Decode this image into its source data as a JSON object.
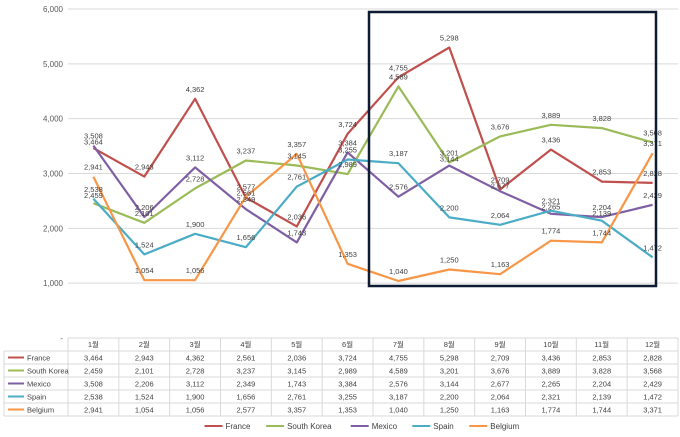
{
  "chart_data": {
    "type": "line",
    "categories": [
      "1월",
      "2월",
      "3월",
      "4월",
      "5월",
      "6월",
      "7월",
      "8월",
      "9월",
      "10월",
      "11월",
      "12월"
    ],
    "ylim": [
      0,
      6000
    ],
    "yticks": [
      "6,000",
      "5,000",
      "4,000",
      "3,000",
      "2,000",
      "1,000",
      "-"
    ],
    "grid": true,
    "legend_position": "bottom",
    "highlight_box": {
      "from_category": "7월",
      "to_category": "12월"
    },
    "series": [
      {
        "name": "France",
        "color": "#c0504d",
        "values": [
          3464,
          2943,
          4362,
          2561,
          2036,
          3724,
          4755,
          5298,
          2709,
          3436,
          2853,
          2828
        ],
        "labels": [
          "3,464",
          "2,943",
          "4,362",
          "2,561",
          "2,036",
          "3,724",
          "4,755",
          "5,298",
          "2,709",
          "3,436",
          "2,853",
          "2,828"
        ]
      },
      {
        "name": "South Korea",
        "color": "#9bbb59",
        "values": [
          2459,
          2101,
          2728,
          3237,
          3145,
          2989,
          4589,
          3201,
          3676,
          3889,
          3828,
          3568
        ],
        "labels": [
          "2,459",
          "2,101",
          "2,728",
          "3,237",
          "3,145",
          "2,989",
          "4,589",
          "3,201",
          "3,676",
          "3,889",
          "3,828",
          "3,568"
        ]
      },
      {
        "name": "Mexico",
        "color": "#7f5fa3",
        "values": [
          3508,
          2206,
          3112,
          2349,
          1743,
          3384,
          2576,
          3144,
          2677,
          2265,
          2204,
          2429
        ],
        "labels": [
          "3,508",
          "2,206",
          "3,112",
          "2,349",
          "1,743",
          "3,384",
          "2,576",
          "3,144",
          "2,677",
          "2,265",
          "2,204",
          "2,429"
        ]
      },
      {
        "name": "Spain",
        "color": "#4bacc6",
        "values": [
          2538,
          1524,
          1900,
          1656,
          2761,
          3255,
          3187,
          2200,
          2064,
          2321,
          2139,
          1472
        ],
        "labels": [
          "2,538",
          "1,524",
          "1,900",
          "1,656",
          "2,761",
          "3,255",
          "3,187",
          "2,200",
          "2,064",
          "2,321",
          "2,139",
          "1,472"
        ]
      },
      {
        "name": "Belgium",
        "color": "#f79646",
        "values": [
          2941,
          1054,
          1056,
          2577,
          3357,
          1353,
          1040,
          1250,
          1163,
          1774,
          1744,
          3371
        ],
        "labels": [
          "2,941",
          "1,054",
          "1,056",
          "2,577",
          "3,357",
          "1,353",
          "1,040",
          "1,250",
          "1,163",
          "1,774",
          "1,744",
          "3,371"
        ]
      }
    ]
  }
}
